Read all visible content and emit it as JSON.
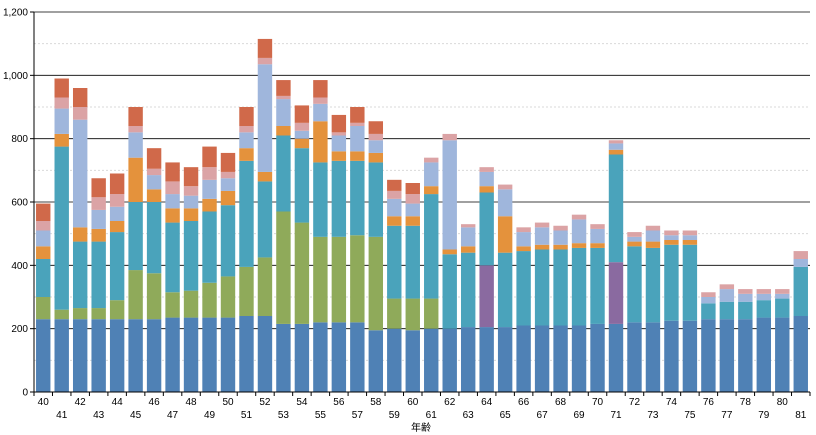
{
  "chart_data": {
    "type": "stacked-bar",
    "xlabel": "年齢",
    "ylabel": "",
    "ylim": [
      0,
      1200
    ],
    "yticks": [
      0,
      200,
      400,
      600,
      800,
      1000,
      1200
    ],
    "ytick_labels": [
      "0",
      "200",
      "400",
      "600",
      "800",
      "1,000",
      "1,200"
    ],
    "grid": "horizontal major at 200, dashed minor at 100",
    "legend": "none",
    "categories": [
      "40",
      "41",
      "42",
      "43",
      "44",
      "45",
      "46",
      "47",
      "48",
      "49",
      "50",
      "51",
      "52",
      "53",
      "54",
      "55",
      "56",
      "57",
      "58",
      "59",
      "60",
      "61",
      "62",
      "63",
      "64",
      "65",
      "66",
      "67",
      "68",
      "69",
      "70",
      "71",
      "72",
      "73",
      "74",
      "75",
      "76",
      "77",
      "78",
      "79",
      "80",
      "81"
    ],
    "series_colors": [
      "#4f81b5",
      "#8faa5a",
      "#4aa3bb",
      "#e4923c",
      "#9fb6dc",
      "#dba3a5",
      "#d0694a",
      "#8a6aa0"
    ],
    "bars": [
      [
        [
          230,
          "#4f81b5"
        ],
        [
          70,
          "#8faa5a"
        ],
        [
          120,
          "#4aa3bb"
        ],
        [
          40,
          "#e4923c"
        ],
        [
          50,
          "#9fb6dc"
        ],
        [
          30,
          "#dba3a5"
        ],
        [
          55,
          "#d0694a"
        ]
      ],
      [
        [
          230,
          "#4f81b5"
        ],
        [
          30,
          "#8faa5a"
        ],
        [
          515,
          "#4aa3bb"
        ],
        [
          40,
          "#e4923c"
        ],
        [
          80,
          "#9fb6dc"
        ],
        [
          35,
          "#dba3a5"
        ],
        [
          60,
          "#d0694a"
        ]
      ],
      [
        [
          230,
          "#4f81b5"
        ],
        [
          35,
          "#8faa5a"
        ],
        [
          210,
          "#4aa3bb"
        ],
        [
          45,
          "#e4923c"
        ],
        [
          340,
          "#9fb6dc"
        ],
        [
          40,
          "#dba3a5"
        ],
        [
          60,
          "#d0694a"
        ]
      ],
      [
        [
          230,
          "#4f81b5"
        ],
        [
          35,
          "#8faa5a"
        ],
        [
          210,
          "#4aa3bb"
        ],
        [
          40,
          "#e4923c"
        ],
        [
          60,
          "#9fb6dc"
        ],
        [
          40,
          "#dba3a5"
        ],
        [
          60,
          "#d0694a"
        ]
      ],
      [
        [
          230,
          "#4f81b5"
        ],
        [
          60,
          "#8faa5a"
        ],
        [
          215,
          "#4aa3bb"
        ],
        [
          35,
          "#e4923c"
        ],
        [
          45,
          "#9fb6dc"
        ],
        [
          40,
          "#dba3a5"
        ],
        [
          65,
          "#d0694a"
        ]
      ],
      [
        [
          230,
          "#4f81b5"
        ],
        [
          155,
          "#8faa5a"
        ],
        [
          215,
          "#4aa3bb"
        ],
        [
          140,
          "#e4923c"
        ],
        [
          80,
          "#9fb6dc"
        ],
        [
          20,
          "#dba3a5"
        ],
        [
          60,
          "#d0694a"
        ]
      ],
      [
        [
          230,
          "#4f81b5"
        ],
        [
          145,
          "#8faa5a"
        ],
        [
          225,
          "#4aa3bb"
        ],
        [
          40,
          "#e4923c"
        ],
        [
          45,
          "#9fb6dc"
        ],
        [
          20,
          "#dba3a5"
        ],
        [
          65,
          "#d0694a"
        ]
      ],
      [
        [
          235,
          "#4f81b5"
        ],
        [
          80,
          "#8faa5a"
        ],
        [
          220,
          "#4aa3bb"
        ],
        [
          45,
          "#e4923c"
        ],
        [
          45,
          "#9fb6dc"
        ],
        [
          40,
          "#dba3a5"
        ],
        [
          60,
          "#d0694a"
        ]
      ],
      [
        [
          235,
          "#4f81b5"
        ],
        [
          85,
          "#8faa5a"
        ],
        [
          220,
          "#4aa3bb"
        ],
        [
          40,
          "#e4923c"
        ],
        [
          40,
          "#9fb6dc"
        ],
        [
          30,
          "#dba3a5"
        ],
        [
          60,
          "#d0694a"
        ]
      ],
      [
        [
          235,
          "#4f81b5"
        ],
        [
          110,
          "#8faa5a"
        ],
        [
          225,
          "#4aa3bb"
        ],
        [
          40,
          "#e4923c"
        ],
        [
          60,
          "#9fb6dc"
        ],
        [
          40,
          "#dba3a5"
        ],
        [
          65,
          "#d0694a"
        ]
      ],
      [
        [
          235,
          "#4f81b5"
        ],
        [
          130,
          "#8faa5a"
        ],
        [
          225,
          "#4aa3bb"
        ],
        [
          45,
          "#e4923c"
        ],
        [
          40,
          "#9fb6dc"
        ],
        [
          20,
          "#dba3a5"
        ],
        [
          60,
          "#d0694a"
        ]
      ],
      [
        [
          240,
          "#4f81b5"
        ],
        [
          155,
          "#8faa5a"
        ],
        [
          335,
          "#4aa3bb"
        ],
        [
          40,
          "#e4923c"
        ],
        [
          50,
          "#9fb6dc"
        ],
        [
          20,
          "#dba3a5"
        ],
        [
          60,
          "#d0694a"
        ]
      ],
      [
        [
          240,
          "#4f81b5"
        ],
        [
          185,
          "#8faa5a"
        ],
        [
          240,
          "#4aa3bb"
        ],
        [
          30,
          "#e4923c"
        ],
        [
          340,
          "#9fb6dc"
        ],
        [
          20,
          "#dba3a5"
        ],
        [
          60,
          "#d0694a"
        ]
      ],
      [
        [
          215,
          "#4f81b5"
        ],
        [
          355,
          "#8faa5a"
        ],
        [
          240,
          "#4aa3bb"
        ],
        [
          30,
          "#e4923c"
        ],
        [
          85,
          "#9fb6dc"
        ],
        [
          10,
          "#dba3a5"
        ],
        [
          50,
          "#d0694a"
        ]
      ],
      [
        [
          215,
          "#4f81b5"
        ],
        [
          320,
          "#8faa5a"
        ],
        [
          235,
          "#4aa3bb"
        ],
        [
          30,
          "#e4923c"
        ],
        [
          25,
          "#9fb6dc"
        ],
        [
          25,
          "#dba3a5"
        ],
        [
          55,
          "#d0694a"
        ]
      ],
      [
        [
          220,
          "#4f81b5"
        ],
        [
          270,
          "#8faa5a"
        ],
        [
          235,
          "#4aa3bb"
        ],
        [
          130,
          "#e4923c"
        ],
        [
          55,
          "#9fb6dc"
        ],
        [
          20,
          "#dba3a5"
        ],
        [
          55,
          "#d0694a"
        ]
      ],
      [
        [
          220,
          "#4f81b5"
        ],
        [
          270,
          "#8faa5a"
        ],
        [
          240,
          "#4aa3bb"
        ],
        [
          30,
          "#e4923c"
        ],
        [
          50,
          "#9fb6dc"
        ],
        [
          10,
          "#dba3a5"
        ],
        [
          55,
          "#d0694a"
        ]
      ],
      [
        [
          220,
          "#4f81b5"
        ],
        [
          275,
          "#8faa5a"
        ],
        [
          235,
          "#4aa3bb"
        ],
        [
          30,
          "#e4923c"
        ],
        [
          80,
          "#9fb6dc"
        ],
        [
          10,
          "#dba3a5"
        ],
        [
          50,
          "#d0694a"
        ]
      ],
      [
        [
          195,
          "#4f81b5"
        ],
        [
          295,
          "#8faa5a"
        ],
        [
          235,
          "#4aa3bb"
        ],
        [
          30,
          "#e4923c"
        ],
        [
          40,
          "#9fb6dc"
        ],
        [
          20,
          "#dba3a5"
        ],
        [
          40,
          "#d0694a"
        ]
      ],
      [
        [
          200,
          "#4f81b5"
        ],
        [
          95,
          "#8faa5a"
        ],
        [
          230,
          "#4aa3bb"
        ],
        [
          30,
          "#e4923c"
        ],
        [
          55,
          "#9fb6dc"
        ],
        [
          25,
          "#dba3a5"
        ],
        [
          35,
          "#d0694a"
        ]
      ],
      [
        [
          195,
          "#4f81b5"
        ],
        [
          100,
          "#8faa5a"
        ],
        [
          230,
          "#4aa3bb"
        ],
        [
          30,
          "#e4923c"
        ],
        [
          40,
          "#9fb6dc"
        ],
        [
          30,
          "#dba3a5"
        ],
        [
          35,
          "#d0694a"
        ]
      ],
      [
        [
          200,
          "#4f81b5"
        ],
        [
          95,
          "#8faa5a"
        ],
        [
          330,
          "#4aa3bb"
        ],
        [
          25,
          "#e4923c"
        ],
        [
          75,
          "#9fb6dc"
        ],
        [
          15,
          "#dba3a5"
        ]
      ],
      [
        [
          200,
          "#4f81b5"
        ],
        [
          235,
          "#4aa3bb"
        ],
        [
          15,
          "#e4923c"
        ],
        [
          345,
          "#9fb6dc"
        ],
        [
          20,
          "#dba3a5"
        ]
      ],
      [
        [
          205,
          "#4f81b5"
        ],
        [
          235,
          "#4aa3bb"
        ],
        [
          20,
          "#e4923c"
        ],
        [
          60,
          "#9fb6dc"
        ],
        [
          10,
          "#dba3a5"
        ]
      ],
      [
        [
          205,
          "#4f81b5"
        ],
        [
          195,
          "#8a6aa0"
        ],
        [
          230,
          "#4aa3bb"
        ],
        [
          20,
          "#e4923c"
        ],
        [
          45,
          "#9fb6dc"
        ],
        [
          15,
          "#dba3a5"
        ]
      ],
      [
        [
          205,
          "#4f81b5"
        ],
        [
          235,
          "#4aa3bb"
        ],
        [
          115,
          "#e4923c"
        ],
        [
          85,
          "#9fb6dc"
        ],
        [
          15,
          "#dba3a5"
        ]
      ],
      [
        [
          210,
          "#4f81b5"
        ],
        [
          235,
          "#4aa3bb"
        ],
        [
          15,
          "#e4923c"
        ],
        [
          45,
          "#9fb6dc"
        ],
        [
          15,
          "#dba3a5"
        ]
      ],
      [
        [
          210,
          "#4f81b5"
        ],
        [
          240,
          "#4aa3bb"
        ],
        [
          15,
          "#e4923c"
        ],
        [
          55,
          "#9fb6dc"
        ],
        [
          15,
          "#dba3a5"
        ]
      ],
      [
        [
          210,
          "#4f81b5"
        ],
        [
          240,
          "#4aa3bb"
        ],
        [
          15,
          "#e4923c"
        ],
        [
          45,
          "#9fb6dc"
        ],
        [
          15,
          "#dba3a5"
        ]
      ],
      [
        [
          210,
          "#4f81b5"
        ],
        [
          245,
          "#4aa3bb"
        ],
        [
          15,
          "#e4923c"
        ],
        [
          75,
          "#9fb6dc"
        ],
        [
          15,
          "#dba3a5"
        ]
      ],
      [
        [
          215,
          "#4f81b5"
        ],
        [
          240,
          "#4aa3bb"
        ],
        [
          15,
          "#e4923c"
        ],
        [
          45,
          "#9fb6dc"
        ],
        [
          15,
          "#dba3a5"
        ]
      ],
      [
        [
          215,
          "#4f81b5"
        ],
        [
          195,
          "#8a6aa0"
        ],
        [
          340,
          "#4aa3bb"
        ],
        [
          15,
          "#e4923c"
        ],
        [
          20,
          "#9fb6dc"
        ],
        [
          10,
          "#dba3a5"
        ]
      ],
      [
        [
          220,
          "#4f81b5"
        ],
        [
          240,
          "#4aa3bb"
        ],
        [
          15,
          "#e4923c"
        ],
        [
          15,
          "#9fb6dc"
        ],
        [
          15,
          "#dba3a5"
        ]
      ],
      [
        [
          220,
          "#4f81b5"
        ],
        [
          235,
          "#4aa3bb"
        ],
        [
          20,
          "#e4923c"
        ],
        [
          35,
          "#9fb6dc"
        ],
        [
          15,
          "#dba3a5"
        ]
      ],
      [
        [
          225,
          "#4f81b5"
        ],
        [
          240,
          "#4aa3bb"
        ],
        [
          15,
          "#e4923c"
        ],
        [
          15,
          "#9fb6dc"
        ],
        [
          15,
          "#dba3a5"
        ]
      ],
      [
        [
          225,
          "#4f81b5"
        ],
        [
          240,
          "#4aa3bb"
        ],
        [
          15,
          "#e4923c"
        ],
        [
          15,
          "#9fb6dc"
        ],
        [
          15,
          "#dba3a5"
        ]
      ],
      [
        [
          230,
          "#4f81b5"
        ],
        [
          50,
          "#4aa3bb"
        ],
        [
          20,
          "#9fb6dc"
        ],
        [
          15,
          "#dba3a5"
        ]
      ],
      [
        [
          230,
          "#4f81b5"
        ],
        [
          55,
          "#4aa3bb"
        ],
        [
          40,
          "#9fb6dc"
        ],
        [
          15,
          "#dba3a5"
        ]
      ],
      [
        [
          230,
          "#4f81b5"
        ],
        [
          55,
          "#4aa3bb"
        ],
        [
          25,
          "#9fb6dc"
        ],
        [
          15,
          "#dba3a5"
        ]
      ],
      [
        [
          235,
          "#4f81b5"
        ],
        [
          55,
          "#4aa3bb"
        ],
        [
          20,
          "#9fb6dc"
        ],
        [
          15,
          "#dba3a5"
        ]
      ],
      [
        [
          235,
          "#4f81b5"
        ],
        [
          60,
          "#4aa3bb"
        ],
        [
          15,
          "#9fb6dc"
        ],
        [
          15,
          "#dba3a5"
        ]
      ],
      [
        [
          240,
          "#4f81b5"
        ],
        [
          155,
          "#4aa3bb"
        ],
        [
          25,
          "#9fb6dc"
        ],
        [
          25,
          "#dba3a5"
        ]
      ]
    ]
  }
}
